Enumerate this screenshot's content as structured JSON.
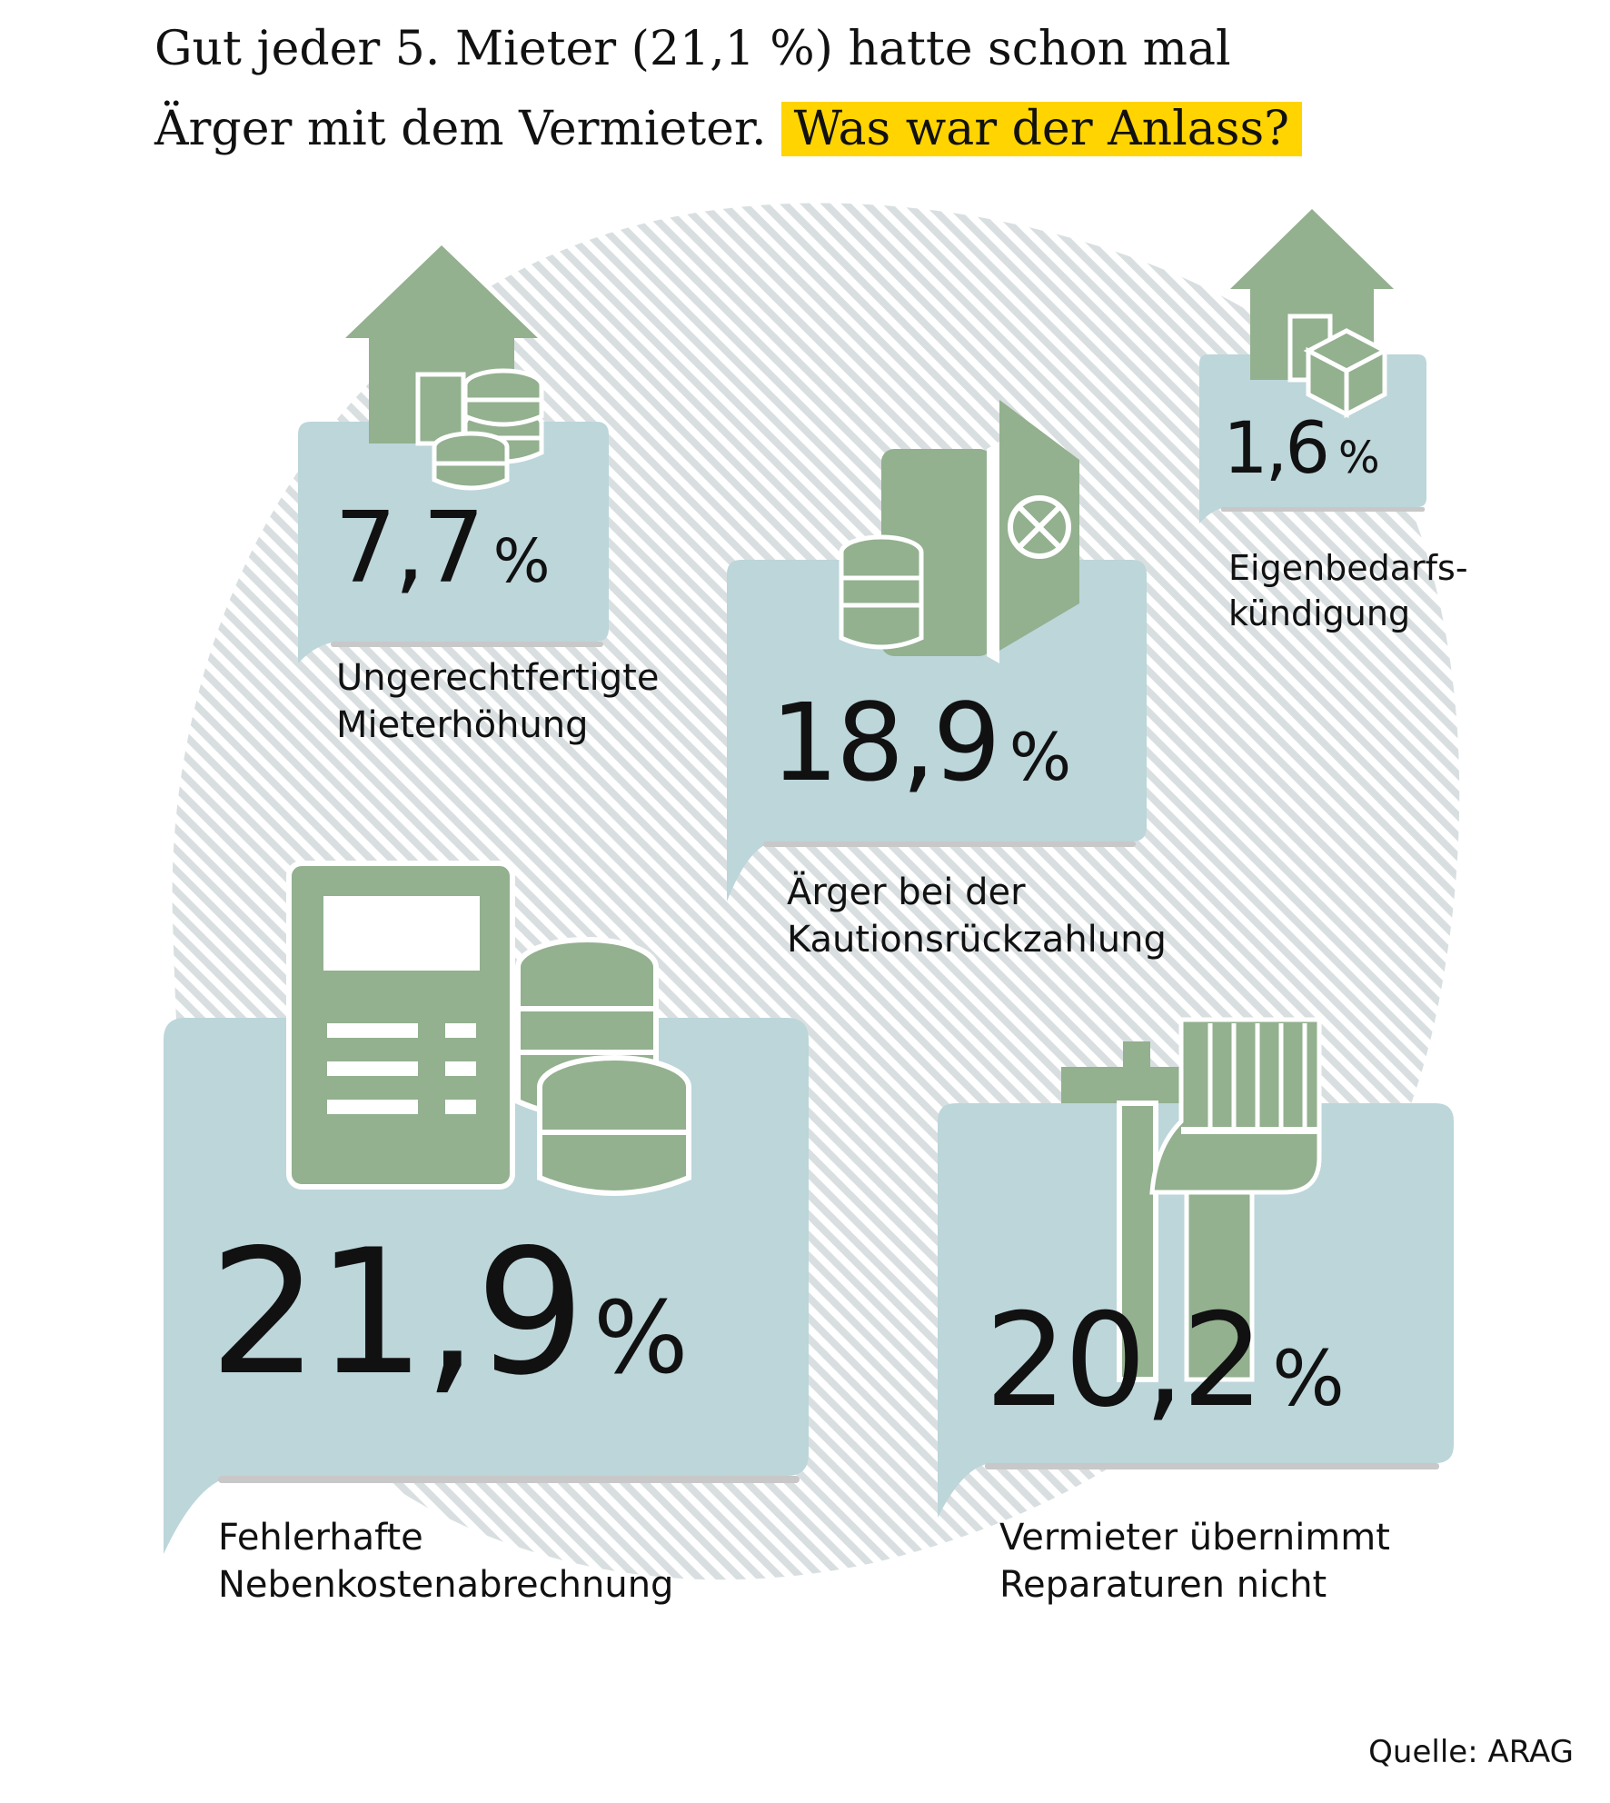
{
  "title": {
    "line1": "Gut jeder 5. Mieter (21,1 %) hatte schon mal",
    "line2": "Ärger mit dem Vermieter.",
    "highlight": "Was war der Anlass?"
  },
  "colors": {
    "card": "#bcd6da",
    "icon": "#93b08f",
    "highlight": "#ffd400",
    "hatch": "#d9dfe0"
  },
  "chart_data": {
    "type": "bar",
    "unit": "%",
    "categories": [
      "Ungerechtfertigte Mieterhöhung",
      "Ärger bei der Kautionsrückzahlung",
      "Eigenbedarfskündigung",
      "Fehlerhafte Nebenkostenabrechnung",
      "Vermieter übernimmt Reparaturen nicht"
    ],
    "values": [
      7.7,
      18.9,
      1.6,
      21.9,
      20.2
    ]
  },
  "items": [
    {
      "value": "7,7",
      "unit": "%",
      "label_line1": "Ungerechtfertigte",
      "label_line2": "Mieterhöhung",
      "icon": "house-coins-icon"
    },
    {
      "value": "18,9",
      "unit": "%",
      "label_line1": "Ärger bei der",
      "label_line2": "Kautionsrückzahlung",
      "icon": "safe-coins-icon"
    },
    {
      "value": "1,6",
      "unit": "%",
      "label_line1": "Eigenbedarfs-",
      "label_line2": "kündigung",
      "icon": "house-box-icon"
    },
    {
      "value": "21,9",
      "unit": "%",
      "label_line1": "Fehlerhafte",
      "label_line2": "Nebenkostenabrechnung",
      "icon": "calculator-coins-icon"
    },
    {
      "value": "20,2",
      "unit": "%",
      "label_line1": "Vermieter übernimmt",
      "label_line2": "Reparaturen nicht",
      "icon": "hammer-brush-icon"
    }
  ],
  "source": "Quelle: ARAG"
}
